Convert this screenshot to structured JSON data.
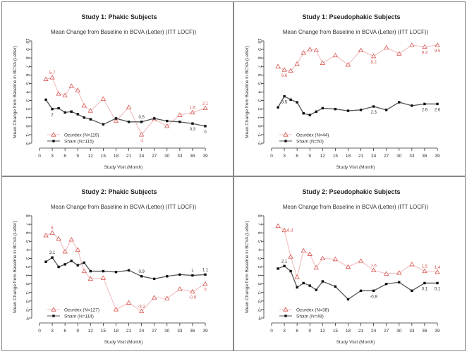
{
  "chart_data": [
    {
      "type": "line",
      "title": "Study 1: Phakic Subjects",
      "subtitle": "Mean Change from Baseline in BCVA (Letter) (ITT LOCF))",
      "xlabel": "Study Visit (Month)",
      "ylabel": "Mean Change from Baseline in BCVA (Letter)",
      "xlim": [
        0,
        39
      ],
      "ylim": [
        -2,
        10
      ],
      "xticks": [
        0,
        3,
        6,
        9,
        12,
        15,
        18,
        21,
        24,
        27,
        30,
        33,
        36,
        39
      ],
      "yticks": [
        -2,
        -1,
        0,
        1,
        2,
        3,
        4,
        5,
        6,
        7,
        8,
        9,
        10
      ],
      "grid": false,
      "legend_position": "bottom-left",
      "x": [
        1.5,
        3,
        4.5,
        6,
        7.5,
        9,
        10.5,
        12,
        15,
        18,
        21,
        24,
        27,
        30,
        33,
        36,
        39
      ],
      "series": [
        {
          "name": "Ozurdex (N=119)",
          "color": "#d9534f",
          "marker": "triangle",
          "values": [
            5.5,
            5.7,
            3.8,
            3.6,
            4.7,
            4.2,
            2.4,
            1.8,
            3.2,
            0.6,
            2.2,
            -1,
            0.8,
            0,
            1.3,
            1.6,
            2.1
          ],
          "labels": [
            {
              "x": 3,
              "text": "5.7",
              "pos": "above"
            },
            {
              "x": 24,
              "text": "-1",
              "pos": "below"
            },
            {
              "x": 36,
              "text": "1.6",
              "pos": "above"
            },
            {
              "x": 39,
              "text": "2.1",
              "pos": "above"
            }
          ]
        },
        {
          "name": "Sham (N=115)",
          "color": "#111111",
          "marker": "square",
          "values": [
            3.1,
            2,
            2.1,
            1.6,
            1.7,
            1.4,
            1.0,
            0.8,
            0.2,
            0.9,
            0.5,
            0.5,
            0.9,
            0.6,
            0.5,
            0.3,
            0
          ],
          "labels": [
            {
              "x": 3,
              "text": "2",
              "pos": "below"
            },
            {
              "x": 24,
              "text": "0.5",
              "pos": "above"
            },
            {
              "x": 36,
              "text": "0.3",
              "pos": "below"
            },
            {
              "x": 39,
              "text": "0",
              "pos": "below"
            }
          ]
        }
      ]
    },
    {
      "type": "line",
      "title": "Study 1: Pseudophakic Subjects",
      "subtitle": "Mean Change from Baseline in BCVA (Letter) (ITT LOCF))",
      "xlabel": "Study Visit (Month)",
      "ylabel": "Mean Change from Baseline in BCVA (Letter)",
      "xlim": [
        0,
        39
      ],
      "ylim": [
        -2,
        10
      ],
      "xticks": [
        0,
        3,
        6,
        9,
        12,
        15,
        18,
        21,
        24,
        27,
        30,
        33,
        36,
        39
      ],
      "yticks": [
        -2,
        -1,
        0,
        1,
        2,
        3,
        4,
        5,
        6,
        7,
        8,
        9,
        10
      ],
      "grid": false,
      "legend_position": "bottom-left",
      "x": [
        1.5,
        3,
        4.5,
        6,
        7.5,
        9,
        10.5,
        12,
        15,
        18,
        21,
        24,
        27,
        30,
        33,
        36,
        39
      ],
      "series": [
        {
          "name": "Ozurdex (N=44)",
          "color": "#d9534f",
          "marker": "triangle",
          "values": [
            7.0,
            6.6,
            6.5,
            7.3,
            8.6,
            9.0,
            8.9,
            7.4,
            8.3,
            7.2,
            8.9,
            8.2,
            9.2,
            8.5,
            9.5,
            9.3,
            9.5
          ],
          "labels": [
            {
              "x": 3,
              "text": "6.6",
              "pos": "below"
            },
            {
              "x": 24,
              "text": "8.2",
              "pos": "below"
            },
            {
              "x": 36,
              "text": "9.3",
              "pos": "below"
            },
            {
              "x": 39,
              "text": "9.5",
              "pos": "below"
            }
          ]
        },
        {
          "name": "Sham (N=50)",
          "color": "#111111",
          "marker": "square",
          "values": [
            2.2,
            3.5,
            3.1,
            2.8,
            1.5,
            1.3,
            1.7,
            2.1,
            2.0,
            1.8,
            1.9,
            2.3,
            1.9,
            2.8,
            2.4,
            2.6,
            2.6
          ],
          "labels": [
            {
              "x": 3,
              "text": "3.5",
              "pos": "below"
            },
            {
              "x": 24,
              "text": "2.3",
              "pos": "below"
            },
            {
              "x": 36,
              "text": "2.6",
              "pos": "below"
            },
            {
              "x": 39,
              "text": "2.6",
              "pos": "below"
            }
          ]
        }
      ]
    },
    {
      "type": "line",
      "title": "Study 2: Phakic Subjects",
      "subtitle": "Mean Change from Baseline in BCVA (Letter) (ITT LOCF))",
      "xlabel": "Study Visit (Month)",
      "ylabel": "Mean Change from Baseline in BCVA (Letter)",
      "xlim": [
        0,
        39
      ],
      "ylim": [
        -4,
        8
      ],
      "xticks": [
        0,
        3,
        6,
        9,
        12,
        15,
        18,
        21,
        24,
        27,
        30,
        33,
        36,
        39
      ],
      "yticks": [
        -4,
        -3,
        -2,
        -1,
        0,
        1,
        2,
        3,
        4,
        5,
        6,
        7,
        8
      ],
      "grid": false,
      "legend_position": "bottom-left",
      "x": [
        1.5,
        3,
        4.5,
        6,
        7.5,
        9,
        10.5,
        12,
        15,
        18,
        21,
        24,
        27,
        30,
        33,
        36,
        39
      ],
      "series": [
        {
          "name": "Ozurdex (N=127)",
          "color": "#d9534f",
          "marker": "triangle",
          "values": [
            5.7,
            6,
            5.3,
            3.8,
            5.2,
            4.0,
            1.5,
            0.6,
            0.7,
            -3.0,
            -2.2,
            -3.2,
            -1.6,
            -1.7,
            -0.6,
            -0.9,
            0
          ],
          "labels": [
            {
              "x": 3,
              "text": "6",
              "pos": "above"
            },
            {
              "x": 24,
              "text": "-3.2",
              "pos": "above"
            },
            {
              "x": 36,
              "text": "-0.9",
              "pos": "below"
            },
            {
              "x": 39,
              "text": "0",
              "pos": "below"
            }
          ]
        },
        {
          "name": "Sham (N=114)",
          "color": "#111111",
          "marker": "square",
          "values": [
            2.6,
            3.1,
            2.0,
            2.3,
            2.7,
            2.2,
            2.5,
            1.5,
            1.5,
            1.4,
            1.6,
            0.9,
            0.6,
            0.9,
            1.1,
            1,
            1.1
          ],
          "labels": [
            {
              "x": 3,
              "text": "3.1",
              "pos": "above"
            },
            {
              "x": 24,
              "text": "0.9",
              "pos": "above"
            },
            {
              "x": 36,
              "text": "1",
              "pos": "above"
            },
            {
              "x": 39,
              "text": "1.1",
              "pos": "above"
            }
          ]
        }
      ]
    },
    {
      "type": "line",
      "title": "Study 2: Pseudophakic Subjects",
      "subtitle": "Mean Change from Baseline in BCVA (Letter) (ITT LOCF))",
      "xlabel": "Study Visit (Month)",
      "ylabel": "Mean Change from Baseline in BCVA (Letter)",
      "xlim": [
        0,
        39
      ],
      "ylim": [
        -4,
        8
      ],
      "xticks": [
        0,
        3,
        6,
        9,
        12,
        15,
        18,
        21,
        24,
        27,
        30,
        33,
        36,
        39
      ],
      "yticks": [
        -4,
        -3,
        -2,
        -1,
        0,
        1,
        2,
        3,
        4,
        5,
        6,
        7,
        8
      ],
      "grid": false,
      "legend_position": "bottom-left",
      "x": [
        1.5,
        3,
        4.5,
        6,
        7.5,
        9,
        10.5,
        12,
        15,
        18,
        21,
        24,
        27,
        30,
        33,
        36,
        39
      ],
      "series": [
        {
          "name": "Ozurdex (N=38)",
          "color": "#d9534f",
          "marker": "triangle",
          "values": [
            6.8,
            6.3,
            3.2,
            0.8,
            3.9,
            3.5,
            1.9,
            3.0,
            2.9,
            2.0,
            2.7,
            1.6,
            1.2,
            1.3,
            2.3,
            1.5,
            1.4
          ],
          "labels": [
            {
              "x": 3,
              "text": "6.3",
              "pos": "right"
            },
            {
              "x": 24,
              "text": "1.6",
              "pos": "above"
            },
            {
              "x": 36,
              "text": "1.5",
              "pos": "above"
            },
            {
              "x": 39,
              "text": "1.4",
              "pos": "above"
            }
          ]
        },
        {
          "name": "Sham (N=49)",
          "color": "#111111",
          "marker": "square",
          "values": [
            1.8,
            2.1,
            1.5,
            -0.4,
            0.1,
            -0.2,
            -0.7,
            0.3,
            -0.3,
            -1.8,
            -0.8,
            -0.8,
            0,
            0.2,
            -0.8,
            0.1,
            0.1
          ],
          "labels": [
            {
              "x": 3,
              "text": "2.1",
              "pos": "above"
            },
            {
              "x": 24,
              "text": "-0.8",
              "pos": "below"
            },
            {
              "x": 36,
              "text": "0.1",
              "pos": "below"
            },
            {
              "x": 39,
              "text": "0.1",
              "pos": "below"
            }
          ]
        }
      ]
    }
  ]
}
